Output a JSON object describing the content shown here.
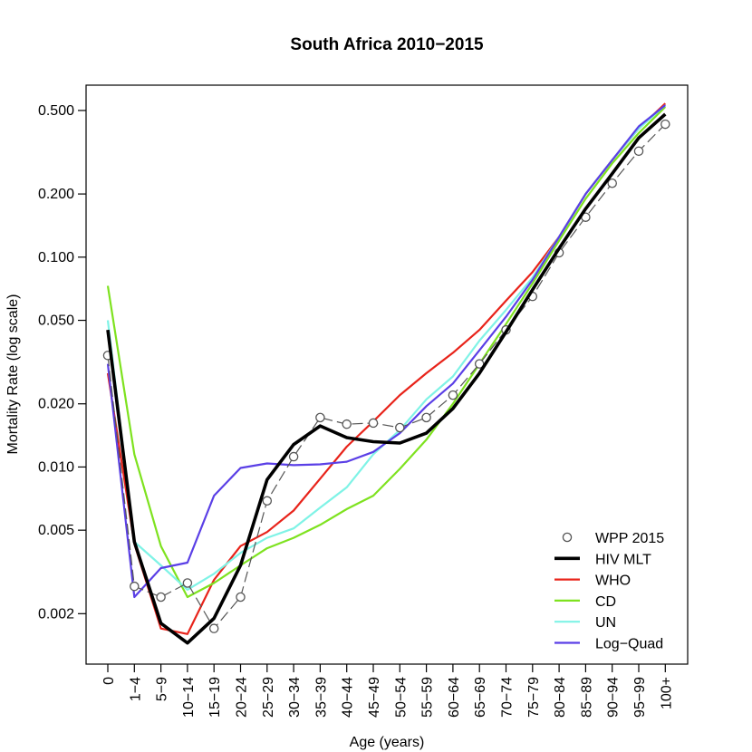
{
  "chart_data": {
    "type": "line",
    "title": "South Africa 2010−2015",
    "xlabel": "Age (years)",
    "ylabel": "Mortality Rate (log scale)",
    "y_scale": "log",
    "ylim": [
      0.00115,
      0.66
    ],
    "y_ticks": [
      0.002,
      0.005,
      0.01,
      0.02,
      0.05,
      0.1,
      0.2,
      0.5
    ],
    "y_tick_labels": [
      "0.002",
      "0.005",
      "0.010",
      "0.020",
      "0.050",
      "0.100",
      "0.200",
      "0.500"
    ],
    "categories": [
      "0",
      "1−4",
      "5−9",
      "10−14",
      "15−19",
      "20−24",
      "25−29",
      "30−34",
      "35−39",
      "40−44",
      "45−49",
      "50−54",
      "55−59",
      "60−64",
      "65−69",
      "70−74",
      "75−79",
      "80−84",
      "85−89",
      "90−94",
      "95−99",
      "100+"
    ],
    "legend_position": "bottom-right",
    "series": [
      {
        "name": "WPP 2015",
        "style": "points-dashed",
        "color": "#555555",
        "values": [
          0.034,
          0.0027,
          0.0024,
          0.0028,
          0.0017,
          0.0024,
          0.0069,
          0.0112,
          0.0172,
          0.016,
          0.0162,
          0.0154,
          0.0172,
          0.022,
          0.031,
          0.045,
          0.065,
          0.105,
          0.155,
          0.225,
          0.32,
          0.43
        ]
      },
      {
        "name": "HIV MLT",
        "style": "thick-line",
        "color": "#000000",
        "values": [
          0.045,
          0.0044,
          0.0018,
          0.00145,
          0.0019,
          0.0034,
          0.0087,
          0.0128,
          0.0157,
          0.0138,
          0.0132,
          0.013,
          0.0145,
          0.019,
          0.028,
          0.044,
          0.07,
          0.11,
          0.17,
          0.25,
          0.37,
          0.48
        ]
      },
      {
        "name": "WHO",
        "style": "line",
        "color": "#e8231a",
        "values": [
          0.028,
          0.0043,
          0.0017,
          0.0016,
          0.0029,
          0.0042,
          0.0049,
          0.0062,
          0.0088,
          0.0125,
          0.0165,
          0.022,
          0.028,
          0.035,
          0.045,
          0.062,
          0.085,
          0.125,
          0.2,
          0.29,
          0.41,
          0.54
        ]
      },
      {
        "name": "CD",
        "style": "line",
        "color": "#7ee21f",
        "values": [
          0.073,
          0.0115,
          0.0042,
          0.0024,
          0.0028,
          0.0034,
          0.0041,
          0.0046,
          0.0053,
          0.0063,
          0.0073,
          0.0098,
          0.0135,
          0.02,
          0.031,
          0.048,
          0.075,
          0.12,
          0.19,
          0.28,
          0.39,
          0.52
        ]
      },
      {
        "name": "UN",
        "style": "line",
        "color": "#7ff3e6",
        "values": [
          0.05,
          0.0044,
          0.0034,
          0.0026,
          0.0031,
          0.0039,
          0.0046,
          0.0051,
          0.0064,
          0.008,
          0.0115,
          0.015,
          0.021,
          0.027,
          0.04,
          0.056,
          0.08,
          0.125,
          0.2,
          0.29,
          0.41,
          0.53
        ]
      },
      {
        "name": "Log−Quad",
        "style": "line",
        "color": "#5a3fe6",
        "values": [
          0.031,
          0.0024,
          0.0033,
          0.0035,
          0.0073,
          0.0099,
          0.0104,
          0.0102,
          0.0103,
          0.0106,
          0.0118,
          0.0145,
          0.0195,
          0.025,
          0.036,
          0.052,
          0.078,
          0.125,
          0.2,
          0.29,
          0.42,
          0.53
        ]
      }
    ]
  }
}
